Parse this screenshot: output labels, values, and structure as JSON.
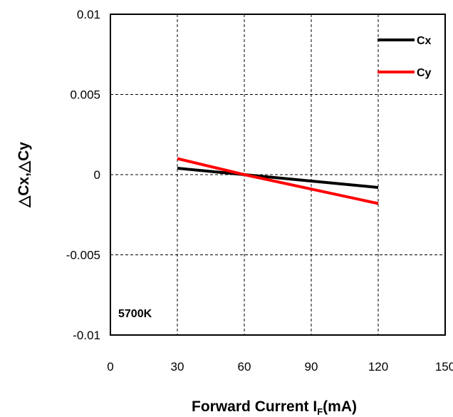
{
  "chart_data": {
    "type": "line",
    "title": "",
    "xlabel_main": "Forward Current I",
    "xlabel_sub": "F",
    "xlabel_unit": "(mA)",
    "ylabel": "△Cx,△Cy",
    "xlim": [
      0,
      150
    ],
    "ylim": [
      -0.01,
      0.01
    ],
    "xticks": [
      0,
      30,
      60,
      90,
      120,
      150
    ],
    "yticks": [
      -0.01,
      -0.005,
      0,
      0.005,
      0.01
    ],
    "xtick_labels": [
      "0",
      "30",
      "60",
      "90",
      "120",
      "150"
    ],
    "ytick_labels": [
      "-0.01",
      "-0.005",
      "0",
      "0.005",
      "0.01"
    ],
    "grid": true,
    "legend_position": "top-right",
    "series": [
      {
        "name": "Cx",
        "color": "#000000",
        "x": [
          30,
          60,
          120
        ],
        "y": [
          0.0004,
          0,
          -0.0008
        ]
      },
      {
        "name": "Cy",
        "color": "#ff0000",
        "x": [
          30,
          60,
          120
        ],
        "y": [
          0.001,
          0,
          -0.0018
        ]
      }
    ],
    "annotation": "5700K"
  }
}
